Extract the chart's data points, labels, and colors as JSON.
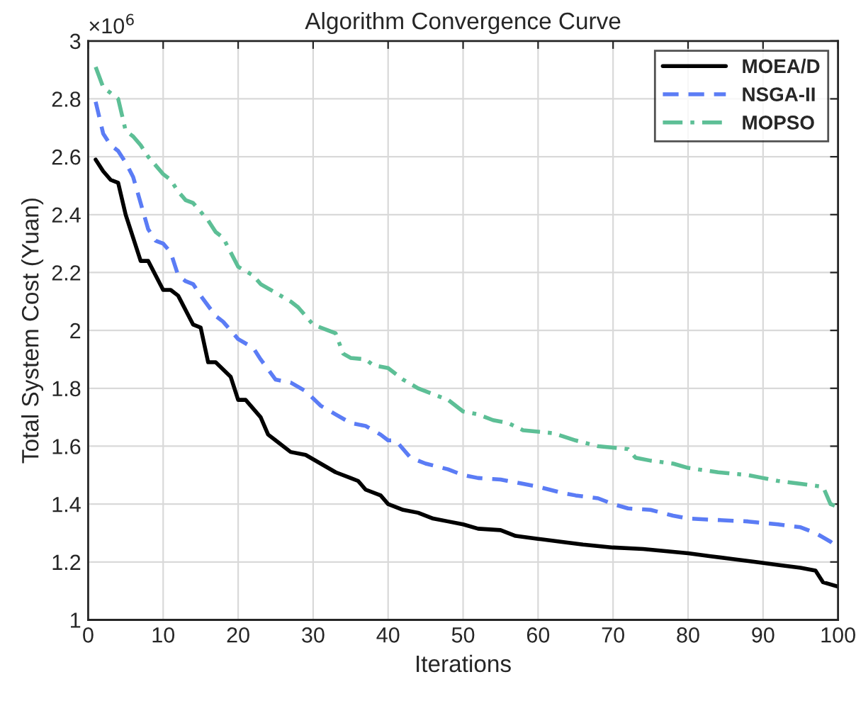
{
  "chart_data": {
    "type": "line",
    "title": "Algorithm Convergence Curve",
    "xlabel": "Iterations",
    "ylabel": "Total System Cost (Yuan)",
    "annotations": [
      "×10$^{6}$"
    ],
    "xlim": [
      0,
      100
    ],
    "xticks": [
      0,
      10,
      20,
      30,
      40,
      50,
      60,
      70,
      80,
      90,
      100
    ],
    "ylim": [
      1,
      3
    ],
    "yticks": [
      1,
      1.2,
      1.4,
      1.6,
      1.8,
      2,
      2.2,
      2.4,
      2.6,
      2.8,
      3
    ],
    "grid": true,
    "legend": "top right",
    "series": [
      {
        "name": "MOEA/D",
        "color": "#000000",
        "line_style": "solid",
        "x": [
          1,
          2,
          3,
          4,
          5,
          7,
          8,
          10,
          11,
          12,
          14,
          15,
          16,
          17,
          19,
          20,
          21,
          23,
          24,
          25,
          27,
          29,
          31,
          33,
          35,
          36,
          37,
          39,
          40,
          42,
          44,
          46,
          48,
          50,
          52,
          55,
          57,
          60,
          63,
          66,
          70,
          74,
          76,
          80,
          83,
          86,
          89,
          92,
          95,
          97,
          98,
          100
        ],
        "values": [
          2.59,
          2.55,
          2.52,
          2.51,
          2.4,
          2.24,
          2.24,
          2.14,
          2.14,
          2.12,
          2.02,
          2.01,
          1.89,
          1.89,
          1.84,
          1.76,
          1.76,
          1.7,
          1.64,
          1.62,
          1.58,
          1.57,
          1.54,
          1.51,
          1.49,
          1.48,
          1.45,
          1.43,
          1.4,
          1.38,
          1.37,
          1.35,
          1.34,
          1.33,
          1.315,
          1.31,
          1.29,
          1.28,
          1.27,
          1.26,
          1.25,
          1.245,
          1.24,
          1.23,
          1.22,
          1.21,
          1.2,
          1.19,
          1.18,
          1.17,
          1.13,
          1.115
        ]
      },
      {
        "name": "NSGA-II",
        "color": "#5b7cf5",
        "line_style": "dashed",
        "x": [
          1,
          2,
          3,
          4,
          5,
          6,
          7,
          8,
          9,
          10,
          11,
          12,
          13,
          14,
          15,
          17,
          18,
          20,
          22,
          23,
          25,
          27,
          29,
          31,
          33,
          35,
          37,
          39,
          40,
          41,
          43,
          45,
          48,
          50,
          52,
          55,
          58,
          60,
          63,
          65,
          68,
          70,
          72,
          75,
          78,
          80,
          84,
          88,
          92,
          95,
          97,
          99,
          100
        ],
        "values": [
          2.79,
          2.68,
          2.64,
          2.62,
          2.58,
          2.53,
          2.44,
          2.35,
          2.31,
          2.3,
          2.27,
          2.19,
          2.17,
          2.16,
          2.12,
          2.05,
          2.03,
          1.97,
          1.94,
          1.9,
          1.83,
          1.82,
          1.79,
          1.74,
          1.71,
          1.68,
          1.67,
          1.64,
          1.62,
          1.62,
          1.56,
          1.54,
          1.52,
          1.5,
          1.49,
          1.485,
          1.47,
          1.46,
          1.44,
          1.43,
          1.42,
          1.4,
          1.385,
          1.38,
          1.36,
          1.35,
          1.345,
          1.34,
          1.33,
          1.32,
          1.3,
          1.27,
          1.25
        ]
      },
      {
        "name": "MOPSO",
        "color": "#5dbf96",
        "line_style": "dashdot",
        "x": [
          1,
          2,
          3,
          4,
          5,
          6,
          7,
          8,
          10,
          11,
          12,
          13,
          14,
          16,
          17,
          18,
          20,
          22,
          23,
          25,
          27,
          28,
          30,
          32,
          33,
          34,
          35,
          37,
          38,
          40,
          42,
          44,
          46,
          48,
          50,
          52,
          54,
          56,
          58,
          62,
          65,
          68,
          72,
          73,
          75,
          78,
          80,
          84,
          88,
          90,
          92,
          95,
          98,
          99,
          100
        ],
        "values": [
          2.91,
          2.84,
          2.82,
          2.8,
          2.69,
          2.67,
          2.64,
          2.6,
          2.54,
          2.52,
          2.48,
          2.45,
          2.44,
          2.38,
          2.34,
          2.32,
          2.22,
          2.19,
          2.16,
          2.13,
          2.1,
          2.08,
          2.02,
          2.0,
          1.99,
          1.92,
          1.905,
          1.9,
          1.88,
          1.87,
          1.83,
          1.8,
          1.78,
          1.76,
          1.72,
          1.71,
          1.69,
          1.68,
          1.655,
          1.645,
          1.62,
          1.6,
          1.59,
          1.56,
          1.55,
          1.54,
          1.525,
          1.51,
          1.5,
          1.49,
          1.48,
          1.47,
          1.46,
          1.4,
          1.39
        ]
      }
    ]
  }
}
